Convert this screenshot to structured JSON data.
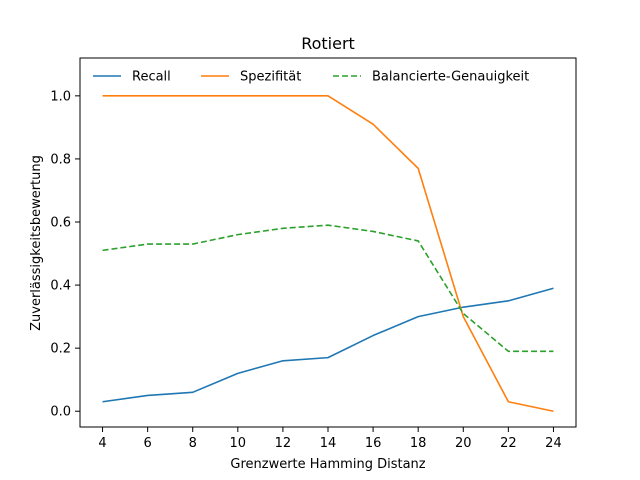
{
  "chart_data": {
    "type": "line",
    "title": "Rotiert",
    "xlabel": "Grenzwerte Hamming Distanz",
    "ylabel": "Zuverlässigkeitsbewertung",
    "x": [
      4,
      6,
      8,
      10,
      12,
      14,
      16,
      18,
      20,
      22,
      24
    ],
    "xlim": [
      3,
      25
    ],
    "ylim": [
      -0.05,
      1.12
    ],
    "xticks": [
      4,
      6,
      8,
      10,
      12,
      14,
      16,
      18,
      20,
      22,
      24
    ],
    "yticks": [
      "0.0",
      "0.2",
      "0.4",
      "0.6",
      "0.8",
      "1.0"
    ],
    "grid": false,
    "legend_position": "top",
    "series": [
      {
        "name": "Recall",
        "color": "#1f77b4",
        "dash": "solid",
        "values": [
          0.03,
          0.05,
          0.06,
          0.12,
          0.16,
          0.17,
          0.24,
          0.3,
          0.33,
          0.35,
          0.39
        ]
      },
      {
        "name": "Spezifität",
        "color": "#ff7f0e",
        "dash": "solid",
        "values": [
          1.0,
          1.0,
          1.0,
          1.0,
          1.0,
          1.0,
          0.91,
          0.77,
          0.3,
          0.03,
          0.0
        ]
      },
      {
        "name": "Balancierte-Genauigkeit",
        "color": "#2ca02c",
        "dash": "dashed",
        "values": [
          0.51,
          0.53,
          0.53,
          0.56,
          0.58,
          0.59,
          0.57,
          0.54,
          0.31,
          0.19,
          0.19
        ]
      }
    ]
  }
}
